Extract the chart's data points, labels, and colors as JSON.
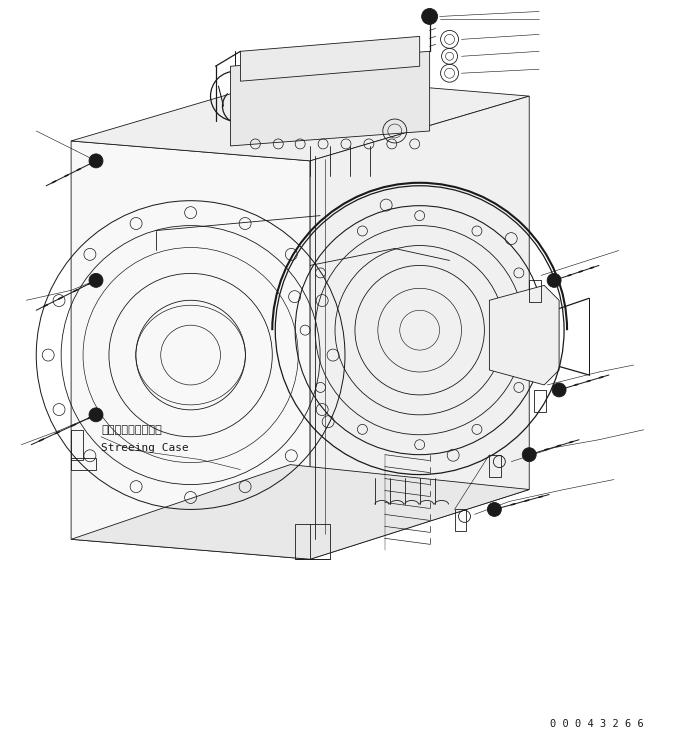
{
  "figure_width": 6.8,
  "figure_height": 7.43,
  "dpi": 100,
  "bg_color": "#ffffff",
  "line_color": "#1a1a1a",
  "lw": 0.6,
  "label_japanese": "ステアリングケース",
  "label_english": "Streeing Case",
  "serial_number": "0 0 0 4 3 2 6 6",
  "serial_fontsize": 7.5
}
